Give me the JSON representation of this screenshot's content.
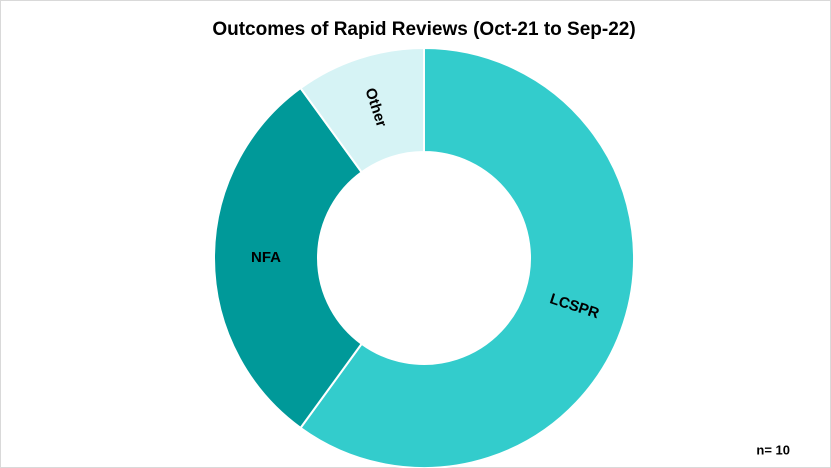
{
  "chart_data": {
    "type": "donut",
    "title": "Outcomes of Rapid Reviews (Oct-21 to Sep-22)",
    "categories": [
      "LCSPR",
      "NFA",
      "Other"
    ],
    "values": [
      6,
      3,
      1
    ],
    "colors": [
      "#33cccc",
      "#009999",
      "#d6f3f5"
    ],
    "annotation": "n= 10"
  }
}
